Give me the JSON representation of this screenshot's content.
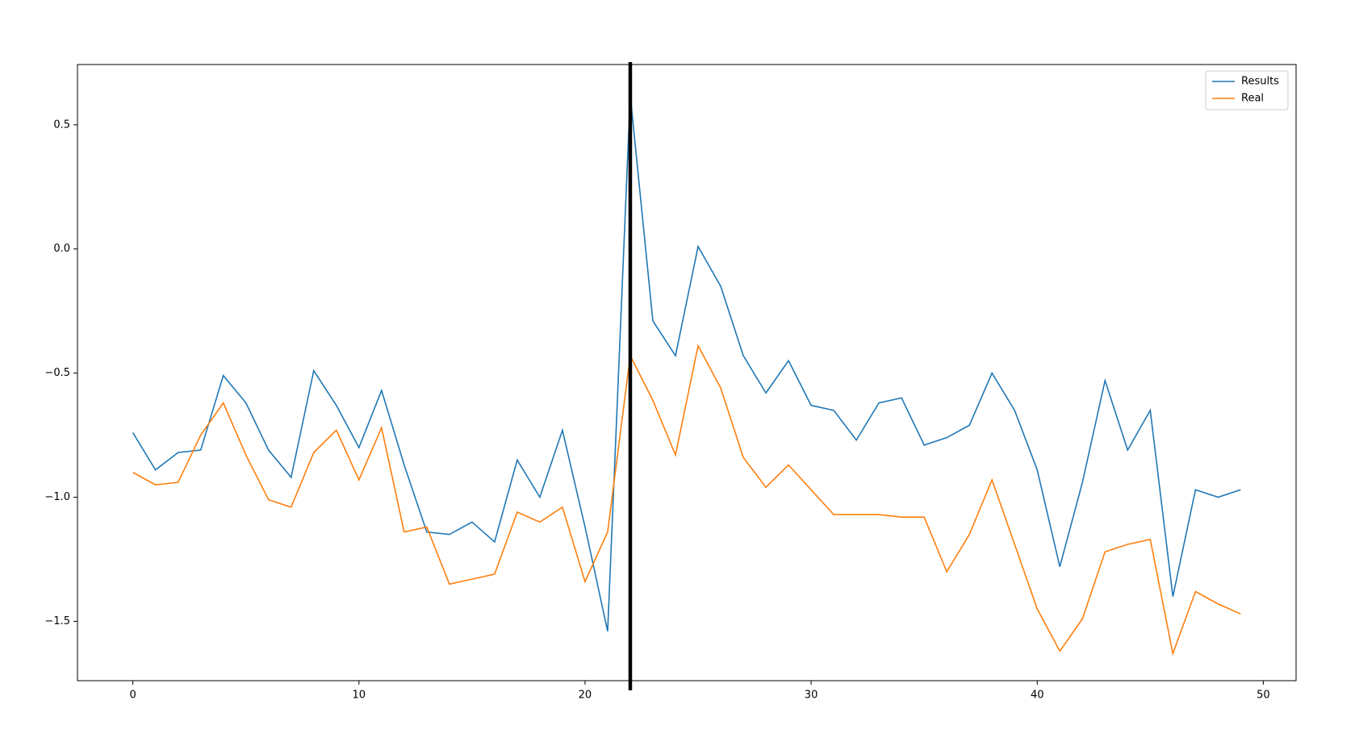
{
  "chart_data": {
    "type": "line",
    "x": [
      0,
      1,
      2,
      3,
      4,
      5,
      6,
      7,
      8,
      9,
      10,
      11,
      12,
      13,
      14,
      15,
      16,
      17,
      18,
      19,
      20,
      21,
      22,
      23,
      24,
      25,
      26,
      27,
      28,
      29,
      30,
      31,
      32,
      33,
      34,
      35,
      36,
      37,
      38,
      39,
      40,
      41,
      42,
      43,
      44,
      45,
      46,
      47,
      48,
      49
    ],
    "series": [
      {
        "name": "Results",
        "color": "#1f77b4",
        "values": [
          -0.74,
          -0.89,
          -0.82,
          -0.81,
          -0.51,
          -0.62,
          -0.81,
          -0.92,
          -0.49,
          -0.63,
          -0.8,
          -0.57,
          -0.87,
          -1.14,
          -1.15,
          -1.1,
          -1.18,
          -0.85,
          -1.0,
          -0.73,
          -1.12,
          -1.54,
          0.62,
          -0.29,
          -0.43,
          0.01,
          -0.15,
          -0.43,
          -0.58,
          -0.45,
          -0.63,
          -0.65,
          -0.77,
          -0.62,
          -0.6,
          -0.79,
          -0.76,
          -0.71,
          -0.5,
          -0.65,
          -0.89,
          -1.28,
          -0.94,
          -0.53,
          -0.81,
          -0.65,
          -1.4,
          -0.97,
          -1.0,
          -0.97
        ]
      },
      {
        "name": "Real",
        "color": "#ff7f0e",
        "values": [
          -0.9,
          -0.95,
          -0.94,
          -0.75,
          -0.62,
          -0.83,
          -1.01,
          -1.04,
          -0.82,
          -0.73,
          -0.93,
          -0.72,
          -1.14,
          -1.12,
          -1.35,
          -1.33,
          -1.31,
          -1.06,
          -1.1,
          -1.04,
          -1.34,
          -1.14,
          -0.43,
          -0.61,
          -0.83,
          -0.39,
          -0.56,
          -0.84,
          -0.96,
          -0.87,
          -0.97,
          -1.07,
          -1.07,
          -1.07,
          -1.08,
          -1.08,
          -1.3,
          -1.15,
          -0.93,
          -1.19,
          -1.45,
          -1.62,
          -1.49,
          -1.22,
          -1.19,
          -1.17,
          -1.63,
          -1.38,
          -1.43,
          -1.47
        ]
      }
    ],
    "xlim": [
      -2.45,
      51.45
    ],
    "xticks": [
      0,
      10,
      20,
      30,
      40,
      50
    ],
    "ylim": [
      -1.739,
      0.743
    ],
    "yticks": [
      {
        "value": -1.5,
        "label": "−1.5"
      },
      {
        "value": -1.0,
        "label": "−1.0"
      },
      {
        "value": -0.5,
        "label": "−0.5"
      },
      {
        "value": 0.0,
        "label": "0.0"
      },
      {
        "value": 0.5,
        "label": "0.5"
      }
    ],
    "vline": 22,
    "vline_color": "#000000",
    "legend": "upper right",
    "grid": false
  }
}
